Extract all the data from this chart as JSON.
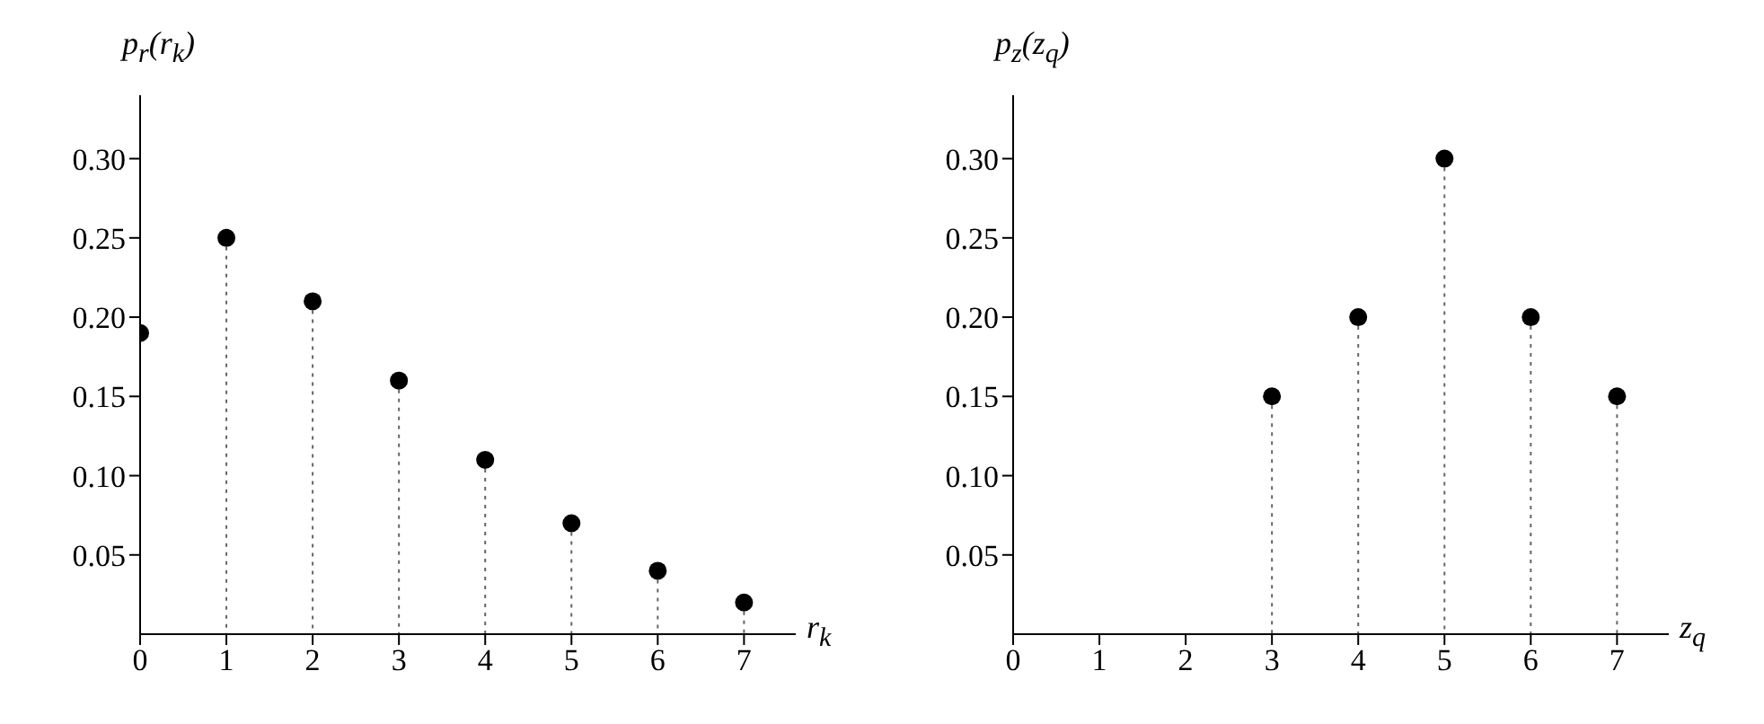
{
  "chart_data": [
    {
      "type": "lollipop",
      "ylabel": "p$_{r}$(r$_{k}$)",
      "xlabel": "r$_{k}$",
      "x": [
        0,
        1,
        2,
        3,
        4,
        5,
        6,
        7
      ],
      "values": [
        0.19,
        0.25,
        0.21,
        0.16,
        0.11,
        0.07,
        0.04,
        0.02
      ],
      "color": "#000000",
      "xlim": [
        0,
        7.6
      ],
      "xticks": [
        0,
        1,
        2,
        3,
        4,
        5,
        6,
        7
      ],
      "ylim": [
        0,
        0.34
      ],
      "yticks": [
        {
          "value": 0.05,
          "label": "0.05"
        },
        {
          "value": 0.1,
          "label": "0.10"
        },
        {
          "value": 0.15,
          "label": "0.15"
        },
        {
          "value": 0.2,
          "label": "0.20"
        },
        {
          "value": 0.25,
          "label": "0.25"
        },
        {
          "value": 0.3,
          "label": "0.30"
        }
      ],
      "marker": "circle",
      "line_style": "dotted"
    },
    {
      "type": "lollipop",
      "ylabel": "p$_{z}$(z$_{q}$)",
      "xlabel": "z$_{q}$",
      "x": [
        3,
        4,
        5,
        6,
        7
      ],
      "values": [
        0.15,
        0.2,
        0.3,
        0.2,
        0.15
      ],
      "color": "#000000",
      "xlim": [
        0,
        7.6
      ],
      "xticks": [
        0,
        1,
        2,
        3,
        4,
        5,
        6,
        7
      ],
      "ylim": [
        0,
        0.34
      ],
      "yticks": [
        {
          "value": 0.05,
          "label": "0.05"
        },
        {
          "value": 0.1,
          "label": "0.10"
        },
        {
          "value": 0.15,
          "label": "0.15"
        },
        {
          "value": 0.2,
          "label": "0.20"
        },
        {
          "value": 0.25,
          "label": "0.25"
        },
        {
          "value": 0.3,
          "label": "0.30"
        }
      ],
      "marker": "circle",
      "line_style": "dotted"
    }
  ]
}
